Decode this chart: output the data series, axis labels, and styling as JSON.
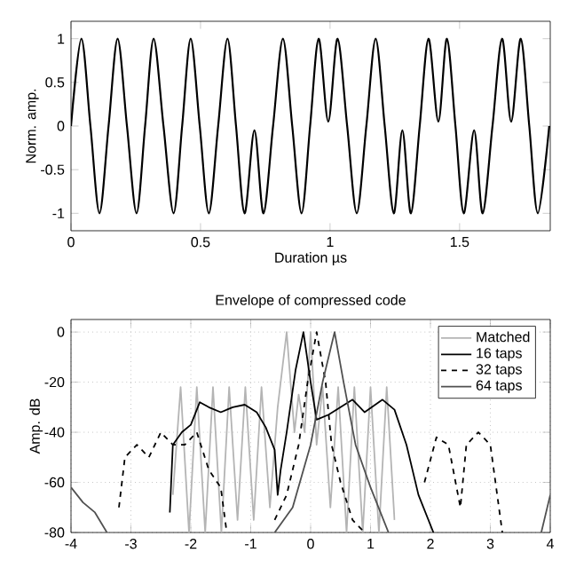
{
  "chart_data": [
    {
      "type": "line",
      "xlabel": "Duration µs",
      "ylabel": "Norm. amp.",
      "xlim": [
        0,
        1.85
      ],
      "xticks": [
        0,
        0.5,
        1,
        1.5
      ],
      "ylim": [
        -1.2,
        1.2
      ],
      "yticks": [
        -1,
        -0.5,
        0,
        0.5,
        1
      ],
      "series": [
        {
          "color": "#000000",
          "x": [
            0,
            0.04,
            0.075,
            0.11,
            0.145,
            0.18,
            0.216,
            0.253,
            0.286,
            0.319,
            0.357,
            0.396,
            0.429,
            0.462,
            0.497,
            0.532,
            0.568,
            0.604,
            0.637,
            0.67,
            0.708,
            0.743,
            0.78,
            0.818,
            0.854,
            0.89,
            0.923,
            0.956,
            0.993,
            1.029,
            1.066,
            1.103,
            1.14,
            1.176,
            1.211,
            1.246,
            1.279,
            1.312,
            1.346,
            1.38,
            1.418,
            1.451,
            1.484,
            1.516,
            1.556,
            1.589,
            1.627,
            1.664,
            1.699,
            1.736,
            1.769,
            1.802,
            1.846
          ],
          "values": [
            0,
            1,
            0,
            -1,
            0,
            1,
            0,
            -1,
            0,
            1,
            0,
            -1,
            0,
            1,
            0,
            -1,
            0,
            1,
            0,
            -1,
            -0.05,
            -1,
            0,
            1,
            0,
            -1,
            0,
            1,
            0.05,
            1,
            0,
            -1,
            0,
            1,
            0,
            -1,
            -0.05,
            -1,
            0,
            1,
            0.05,
            1,
            0,
            -1,
            -0.05,
            -1,
            0,
            1,
            0.05,
            1,
            0,
            -1,
            0
          ]
        }
      ]
    },
    {
      "type": "line",
      "title": "Envelope of compressed code",
      "ylabel": "Amp. dB",
      "xlim": [
        -4,
        4
      ],
      "xticks": [
        -4,
        -3,
        -2,
        -1,
        0,
        1,
        2,
        3,
        4
      ],
      "ylim": [
        -80,
        5
      ],
      "yticks": [
        -80,
        -60,
        -40,
        -20,
        0
      ],
      "grid": true,
      "legend": "top right",
      "series": [
        {
          "name": "Matched",
          "color": "#b4b4b4",
          "line_style": "solid",
          "x": [
            -2.3,
            -2.17,
            -2.03,
            -1.9,
            -1.76,
            -1.63,
            -1.49,
            -1.36,
            -1.22,
            -1.09,
            -0.95,
            -0.82,
            -0.68,
            -0.55,
            -0.4,
            -0.27,
            -0.2,
            -0.1,
            0.0,
            0.1,
            0.2,
            0.33,
            0.46,
            0.6,
            0.73,
            0.87,
            1.0,
            1.14,
            1.27,
            1.4
          ],
          "values": [
            -65,
            -22,
            -80,
            -22,
            -80,
            -22,
            -80,
            -22,
            -75,
            -22,
            -75,
            -22,
            -70,
            -30,
            0,
            -40,
            -25,
            -40,
            0,
            -45,
            -22,
            -70,
            -22,
            -80,
            -22,
            -80,
            -22,
            -80,
            -22,
            -75
          ]
        },
        {
          "name": "16 taps",
          "color": "#000000",
          "line_style": "solid",
          "x": [
            -2.35,
            -2.3,
            -2.15,
            -2.0,
            -1.85,
            -1.7,
            -1.5,
            -1.3,
            -1.1,
            -0.9,
            -0.75,
            -0.6,
            -0.55,
            -0.5,
            -0.4,
            -0.25,
            -0.12,
            0.0,
            0.1,
            0.3,
            0.5,
            0.7,
            0.9,
            1.2,
            1.4,
            1.6,
            1.8,
            2.05
          ],
          "values": [
            -72,
            -45,
            -40,
            -37,
            -28,
            -30,
            -32,
            -30,
            -29,
            -32,
            -38,
            -47,
            -65,
            -55,
            -40,
            -15,
            0,
            -20,
            -35,
            -33,
            -30,
            -27,
            -32,
            -27,
            -31,
            -45,
            -65,
            -80
          ]
        },
        {
          "name": "32 taps",
          "color": "#000000",
          "line_style": "dashed",
          "x": [
            -3.2,
            -3.1,
            -2.9,
            -2.7,
            -2.5,
            -2.3,
            -2.1,
            -1.9,
            -1.7,
            -1.5,
            -1.4,
            -1.0,
            -0.6,
            -0.4,
            -0.2,
            -0.05,
            0.1,
            0.25,
            0.35,
            0.5,
            0.7,
            0.9,
            1.4,
            1.9,
            2.1,
            2.3,
            2.5,
            2.6,
            2.8,
            3.0,
            3.2
          ],
          "values": [
            -70,
            -50,
            -45,
            -50,
            -40,
            -45,
            -45,
            -40,
            -55,
            -62,
            -80,
            null,
            -75,
            -65,
            -45,
            -20,
            0,
            -20,
            -45,
            -60,
            -75,
            -80,
            null,
            -60,
            -42,
            -45,
            -70,
            -45,
            -40,
            -45,
            -80
          ]
        },
        {
          "name": "64 taps",
          "color": "#505050",
          "line_style": "solid",
          "x": [
            -4.0,
            -3.8,
            -3.6,
            -3.4,
            -2.0,
            -0.6,
            -0.3,
            0.0,
            0.2,
            0.4,
            0.55,
            0.75,
            1.0,
            1.3,
            2.5,
            3.85,
            4.0
          ],
          "values": [
            -62,
            -68,
            -72,
            -80,
            null,
            -80,
            -70,
            -45,
            -20,
            0,
            -20,
            -45,
            -62,
            -80,
            null,
            -80,
            -65
          ]
        }
      ]
    }
  ]
}
